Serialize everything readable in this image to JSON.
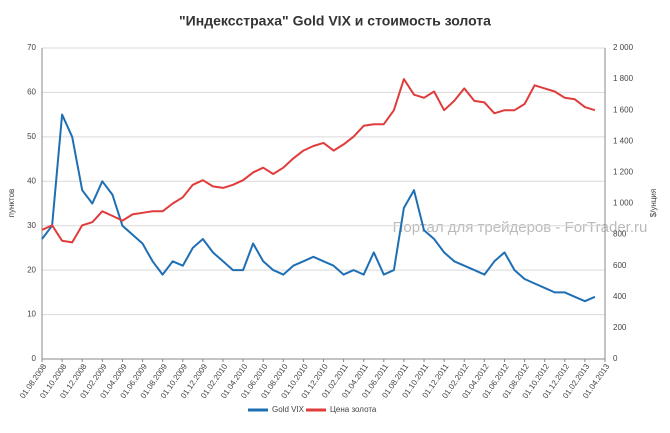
{
  "chart_data": {
    "type": "line",
    "title": "\"Индексстраха\" Gold VIX и стоимость золота",
    "ylabel": "пунктов",
    "y2label": "$/унция",
    "watermark": "Портал для трейдеров - ForTrader.ru",
    "categories": [
      "01.08.2008",
      null,
      "01.10.2008",
      null,
      "01.12.2008",
      null,
      "01.02.2009",
      null,
      "01.04.2009",
      null,
      "01.06.2009",
      null,
      "01.08.2009",
      null,
      "01.10.2009",
      null,
      "01.12.2009",
      null,
      "01.02.2010",
      null,
      "01.04.2010",
      null,
      "01.06.2010",
      null,
      "01.08.2010",
      null,
      "01.10.2010",
      null,
      "01.12.2010",
      null,
      "01.02.2011",
      null,
      "01.04.2011",
      null,
      "01.06.2011",
      null,
      "01.08.2011",
      null,
      "01.10.2011",
      null,
      "01.12.2011",
      null,
      "01.02.2012",
      null,
      "01.04.2012",
      null,
      "01.06.2012",
      null,
      "01.08.2012",
      null,
      "01.10.2012",
      null,
      "01.12.2012",
      null,
      "01.02.2013",
      null,
      "01.04.2013"
    ],
    "series": [
      {
        "name": "Gold VIX",
        "color": "#1f6fb5",
        "values": [
          27,
          30,
          55,
          50,
          38,
          35,
          40,
          37,
          30,
          28,
          26,
          22,
          19,
          22,
          21,
          25,
          27,
          24,
          22,
          20,
          20,
          26,
          22,
          20,
          19,
          21,
          22,
          23,
          22,
          21,
          19,
          20,
          19,
          24,
          19,
          20,
          34,
          38,
          29,
          27,
          24,
          22,
          21,
          20,
          19,
          22,
          24,
          20,
          18,
          17,
          16,
          15,
          15,
          14,
          13,
          14,
          null
        ]
      },
      {
        "name": "Цена золота",
        "color": "#e03c3c",
        "axis": "y2",
        "values": [
          830,
          860,
          760,
          750,
          860,
          880,
          950,
          920,
          890,
          930,
          940,
          950,
          950,
          1000,
          1040,
          1120,
          1150,
          1110,
          1100,
          1120,
          1150,
          1200,
          1230,
          1190,
          1230,
          1290,
          1340,
          1370,
          1390,
          1340,
          1380,
          1430,
          1500,
          1510,
          1510,
          1600,
          1800,
          1700,
          1680,
          1720,
          1600,
          1660,
          1740,
          1660,
          1650,
          1580,
          1600,
          1600,
          1640,
          1760,
          1740,
          1720,
          1680,
          1670,
          1620,
          1600,
          null
        ]
      }
    ],
    "ylim": [
      0,
      70
    ],
    "yticks": [
      0,
      10,
      20,
      30,
      40,
      50,
      60,
      70
    ],
    "y2lim": [
      0,
      2000
    ],
    "y2ticks": [
      0,
      200,
      400,
      600,
      800,
      {
        "value": 1000,
        "label": "1 000"
      },
      {
        "value": 1200,
        "label": "1 200"
      },
      {
        "value": 1400,
        "label": "1 400"
      },
      {
        "value": 1600,
        "label": "1 600"
      },
      {
        "value": 1800,
        "label": "1 800"
      },
      {
        "value": 2000,
        "label": "2 000"
      }
    ],
    "grid": true
  }
}
